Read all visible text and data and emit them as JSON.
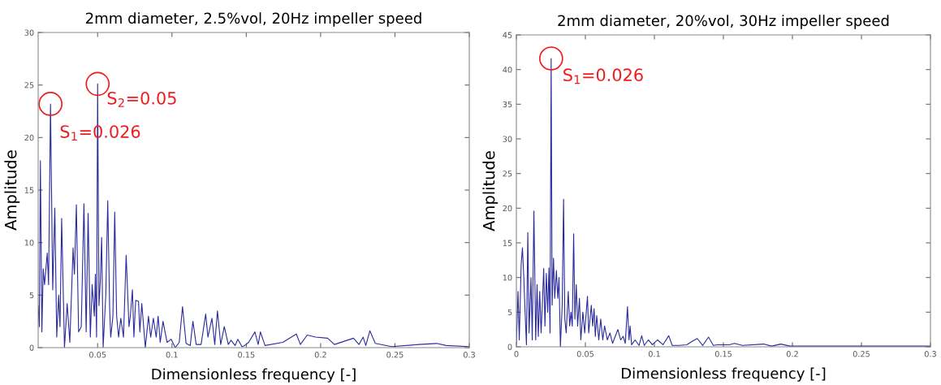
{
  "chart_data": [
    {
      "type": "line",
      "title": "2mm diameter, 2.5%vol, 20Hz impeller speed",
      "xlabel": "Dimensionless frequency [-]",
      "ylabel": "Amplitude",
      "x": [
        0.01,
        0.0108,
        0.0115,
        0.0125,
        0.0134,
        0.0143,
        0.0152,
        0.0161,
        0.017,
        0.0183,
        0.0198,
        0.0212,
        0.0225,
        0.0238,
        0.0247,
        0.0258,
        0.0277,
        0.0295,
        0.0313,
        0.0335,
        0.0344,
        0.0357,
        0.0372,
        0.039,
        0.0408,
        0.0423,
        0.0436,
        0.0451,
        0.0463,
        0.0478,
        0.0485,
        0.0493,
        0.05,
        0.0509,
        0.0518,
        0.0527,
        0.0537,
        0.0555,
        0.0568,
        0.0581,
        0.0588,
        0.0603,
        0.0615,
        0.0628,
        0.0641,
        0.0656,
        0.0674,
        0.0692,
        0.0711,
        0.072,
        0.0734,
        0.0744,
        0.0756,
        0.0775,
        0.0784,
        0.0797,
        0.0821,
        0.0842,
        0.0857,
        0.0875,
        0.0894,
        0.0907,
        0.0921,
        0.094,
        0.0967,
        0.0995,
        0.1022,
        0.1049,
        0.1071,
        0.1095,
        0.1123,
        0.1141,
        0.1163,
        0.1196,
        0.1227,
        0.1242,
        0.1269,
        0.1288,
        0.1306,
        0.1328,
        0.1352,
        0.1379,
        0.1397,
        0.1425,
        0.1443,
        0.1471,
        0.1489,
        0.1516,
        0.1558,
        0.158,
        0.1595,
        0.1626,
        0.1745,
        0.1837,
        0.1864,
        0.191,
        0.1965,
        0.2047,
        0.2093,
        0.2221,
        0.2258,
        0.2286,
        0.2304,
        0.2331,
        0.2368,
        0.2478,
        0.2661,
        0.278,
        0.2844,
        0.3
      ],
      "series": [
        {
          "color": "#2b2b9e",
          "values": [
            4,
            2,
            17.8,
            1.5,
            7.5,
            6,
            7.5,
            9,
            6,
            23.2,
            5.5,
            13.3,
            1,
            5,
            2,
            12.3,
            0,
            4.2,
            0.5,
            9.5,
            7,
            13.6,
            1.5,
            2,
            13.7,
            1.5,
            12.8,
            1,
            6,
            3,
            7,
            1,
            25.1,
            4,
            6.3,
            10.5,
            0,
            5,
            14,
            3.7,
            1,
            3,
            12.9,
            3,
            1,
            2.8,
            1,
            8.8,
            2,
            3,
            5.5,
            1,
            4.5,
            4.4,
            1.5,
            4.2,
            0,
            3,
            1,
            2.8,
            1,
            3,
            0.5,
            2.5,
            0.5,
            0.8,
            0,
            0.5,
            3.9,
            0.4,
            0.2,
            2.5,
            0.3,
            0.3,
            3.2,
            1,
            2.8,
            0.3,
            3.5,
            0.3,
            2.0,
            0.3,
            0.7,
            0.2,
            0.8,
            0.1,
            0.2,
            0.5,
            1.5,
            0.3,
            1.5,
            0.2,
            0.5,
            1.3,
            0.3,
            1.2,
            1.0,
            0.9,
            0.3,
            0.9,
            0.3,
            1.0,
            0.2,
            1.6,
            0.4,
            0.1,
            0.3,
            0.4,
            0.2,
            0.1
          ]
        }
      ],
      "xlim": [
        0.01,
        0.3
      ],
      "xticks": [
        0.05,
        0.1,
        0.15,
        0.2,
        0.25,
        0.3
      ],
      "ylim": [
        0,
        30
      ],
      "yticks": [
        0,
        5,
        10,
        15,
        20,
        25,
        30
      ],
      "annotations": [
        {
          "text": "S$_{1}$=0.026",
          "x": 0.0183,
          "y": 23.2
        },
        {
          "text": "S$_{2}$=0.05",
          "x": 0.05,
          "y": 25.1
        }
      ]
    },
    {
      "type": "line",
      "title": "2mm diameter, 20%vol, 30Hz impeller speed",
      "xlabel": "Dimensionless frequency [-]",
      "ylabel": "Amplitude",
      "x": [
        0,
        0.0012,
        0.0021,
        0.0035,
        0.0044,
        0.0054,
        0.0063,
        0.0073,
        0.0083,
        0.0092,
        0.0106,
        0.0115,
        0.0127,
        0.014,
        0.015,
        0.0159,
        0.0169,
        0.0179,
        0.0188,
        0.0198,
        0.0207,
        0.0217,
        0.0227,
        0.0236,
        0.0244,
        0.0252,
        0.0259,
        0.0269,
        0.0278,
        0.029,
        0.03,
        0.0309,
        0.0319,
        0.0332,
        0.0342,
        0.0351,
        0.0361,
        0.0376,
        0.0386,
        0.0396,
        0.0405,
        0.0415,
        0.0424,
        0.0434,
        0.0444,
        0.0457,
        0.0467,
        0.0482,
        0.0495,
        0.0515,
        0.0524,
        0.0543,
        0.0553,
        0.0563,
        0.0572,
        0.0582,
        0.0597,
        0.0611,
        0.0626,
        0.0639,
        0.0659,
        0.0678,
        0.0697,
        0.0716,
        0.0735,
        0.0755,
        0.0774,
        0.0789,
        0.0805,
        0.0816,
        0.0824,
        0.0835,
        0.086,
        0.0889,
        0.0908,
        0.0927,
        0.0956,
        0.0985,
        0.1023,
        0.1062,
        0.1104,
        0.1129,
        0.1177,
        0.1235,
        0.1273,
        0.1311,
        0.135,
        0.1392,
        0.1427,
        0.1455,
        0.1542,
        0.158,
        0.1637,
        0.1791,
        0.1849,
        0.1916,
        0.1983,
        0.231,
        0.3
      ],
      "series": [
        {
          "color": "#2b2b9e",
          "values": [
            0.5,
            8,
            1,
            12,
            14.3,
            10,
            5,
            0.3,
            16.5,
            2,
            10,
            1,
            19.6,
            1,
            9,
            1.5,
            8,
            2,
            6,
            11.3,
            3,
            10.6,
            5,
            11.4,
            2,
            41.6,
            6,
            12.8,
            7,
            11,
            7,
            10,
            0,
            6,
            21.3,
            4,
            2,
            8,
            3,
            5,
            3,
            16.3,
            4,
            9,
            3,
            7,
            1,
            5,
            2,
            7.3,
            2,
            6,
            3,
            5.5,
            1.5,
            4.5,
            1,
            4,
            1,
            3,
            1,
            2,
            0.5,
            1.5,
            2.5,
            1,
            1.5,
            0.5,
            5.8,
            1,
            3,
            0.3,
            1,
            0.2,
            1.6,
            0.2,
            1,
            0.3,
            1,
            0.3,
            1.6,
            0.2,
            0.2,
            0.3,
            0.8,
            1.2,
            0.2,
            1.4,
            0.2,
            0.3,
            0.3,
            0.5,
            0.2,
            0.4,
            0.1,
            0.4,
            0.1,
            0.1,
            0.1
          ]
        }
      ],
      "xlim": [
        0,
        0.3
      ],
      "xticks": [
        0,
        0.05,
        0.1,
        0.15,
        0.2,
        0.25,
        0.3
      ],
      "ylim": [
        0,
        45
      ],
      "yticks": [
        0,
        5,
        10,
        15,
        20,
        25,
        30,
        35,
        40,
        45
      ],
      "annotations": [
        {
          "text": "S$_{1}$=0.026",
          "x": 0.0252,
          "y": 41.6
        }
      ]
    }
  ]
}
